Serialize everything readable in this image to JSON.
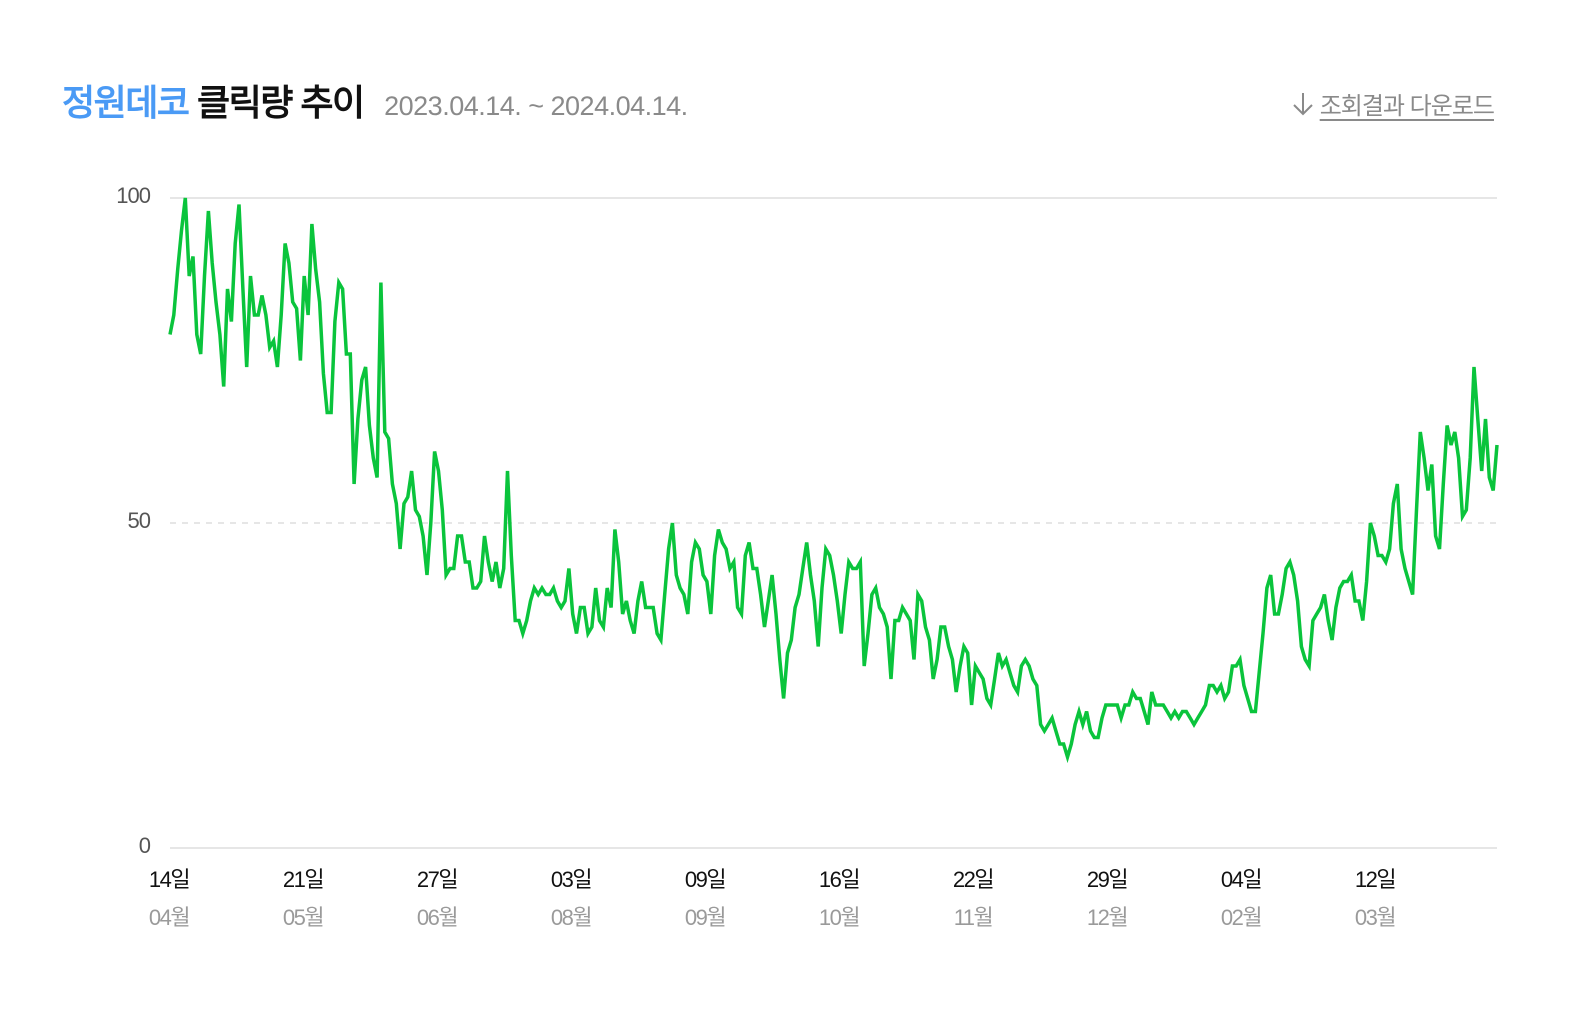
{
  "header": {
    "brand": "정원데코",
    "title_rest": "클릭량 추이",
    "date_range": "2023.04.14. ~ 2024.04.14.",
    "download_label": "조회결과 다운로드",
    "download_icon": "arrow-down-icon"
  },
  "colors": {
    "brand": "#4a9af5",
    "line": "#0ac43c",
    "grid": "#e6e6e6"
  },
  "chart_data": {
    "type": "line",
    "title": "정원데코 클릭량 추이",
    "subtitle": "2023.04.14. ~ 2024.04.14.",
    "xlabel": "",
    "ylabel": "",
    "ylim": [
      0,
      100
    ],
    "yticks": [
      0,
      50,
      100
    ],
    "grid": true,
    "legend": null,
    "x_ticks": [
      {
        "day": "14일",
        "month": "04월"
      },
      {
        "day": "21일",
        "month": "05월"
      },
      {
        "day": "27일",
        "month": "06월"
      },
      {
        "day": "03일",
        "month": "08월"
      },
      {
        "day": "09일",
        "month": "09월"
      },
      {
        "day": "16일",
        "month": "10월"
      },
      {
        "day": "22일",
        "month": "11월"
      },
      {
        "day": "29일",
        "month": "12월"
      },
      {
        "day": "04일",
        "month": "02월"
      },
      {
        "day": "12일",
        "month": "03월"
      }
    ],
    "series": [
      {
        "name": "클릭량",
        "values": [
          79,
          82,
          89,
          95,
          100,
          88,
          91,
          79,
          76,
          88,
          98,
          90,
          84,
          79,
          71,
          86,
          81,
          93,
          99,
          86,
          74,
          88,
          82,
          82,
          85,
          82,
          77,
          78,
          74,
          82,
          93,
          90,
          84,
          83,
          75,
          88,
          82,
          96,
          89,
          84,
          73,
          67,
          67,
          81,
          87,
          86,
          76,
          76,
          56,
          66,
          72,
          74,
          65,
          60,
          57,
          87,
          64,
          63,
          56,
          53,
          46,
          53,
          54,
          58,
          52,
          51,
          48,
          42,
          50,
          61,
          58,
          52,
          42,
          43,
          43,
          48,
          48,
          44,
          44,
          40,
          40,
          41,
          48,
          44,
          41,
          44,
          40,
          43,
          58,
          45,
          35,
          35,
          33,
          35,
          38,
          40,
          39,
          40,
          39,
          39,
          40,
          38,
          37,
          38,
          43,
          36,
          33,
          37,
          37,
          33,
          34,
          40,
          35,
          34,
          40,
          37,
          49,
          44,
          36,
          38,
          35,
          33,
          38,
          41,
          37,
          37,
          37,
          33,
          32,
          39,
          46,
          50,
          42,
          40,
          39,
          36,
          44,
          47,
          46,
          42,
          41,
          36,
          45,
          49,
          47,
          46,
          43,
          44,
          37,
          36,
          45,
          47,
          43,
          43,
          39,
          34,
          38,
          42,
          36,
          29,
          23,
          30,
          32,
          37,
          39,
          43,
          47,
          42,
          38,
          31,
          40,
          46,
          45,
          42,
          38,
          33,
          39,
          44,
          43,
          43,
          44,
          28,
          33,
          39,
          40,
          37,
          36,
          34,
          26,
          35,
          35,
          37,
          36,
          35,
          29,
          39,
          38,
          34,
          32,
          26,
          29,
          34,
          34,
          31,
          29,
          24,
          28,
          31,
          30,
          22,
          28,
          27,
          26,
          23,
          22,
          26,
          30,
          28,
          29,
          27,
          25,
          24,
          28,
          29,
          28,
          26,
          25,
          19,
          18,
          19,
          20,
          18,
          16,
          16,
          14,
          16,
          19,
          21,
          19,
          21,
          18,
          17,
          17,
          20,
          22,
          22,
          22,
          22,
          20,
          22,
          22,
          24,
          23,
          23,
          21,
          19,
          24,
          22,
          22,
          22,
          21,
          20,
          21,
          20,
          21,
          21,
          20,
          19,
          20,
          21,
          22,
          25,
          25,
          24,
          25,
          23,
          24,
          28,
          28,
          29,
          25,
          23,
          21,
          21,
          27,
          33,
          40,
          42,
          36,
          36,
          39,
          43,
          44,
          42,
          38,
          31,
          29,
          28,
          35,
          36,
          37,
          39,
          35,
          32,
          37,
          40,
          41,
          41,
          42,
          38,
          38,
          35,
          41,
          50,
          48,
          45,
          45,
          44,
          46,
          53,
          56,
          46,
          43,
          41,
          39,
          52,
          64,
          60,
          55,
          59,
          48,
          46,
          56,
          65,
          62,
          64,
          60,
          51,
          52,
          60,
          74,
          66,
          58,
          66,
          57,
          55,
          62
        ]
      }
    ]
  }
}
